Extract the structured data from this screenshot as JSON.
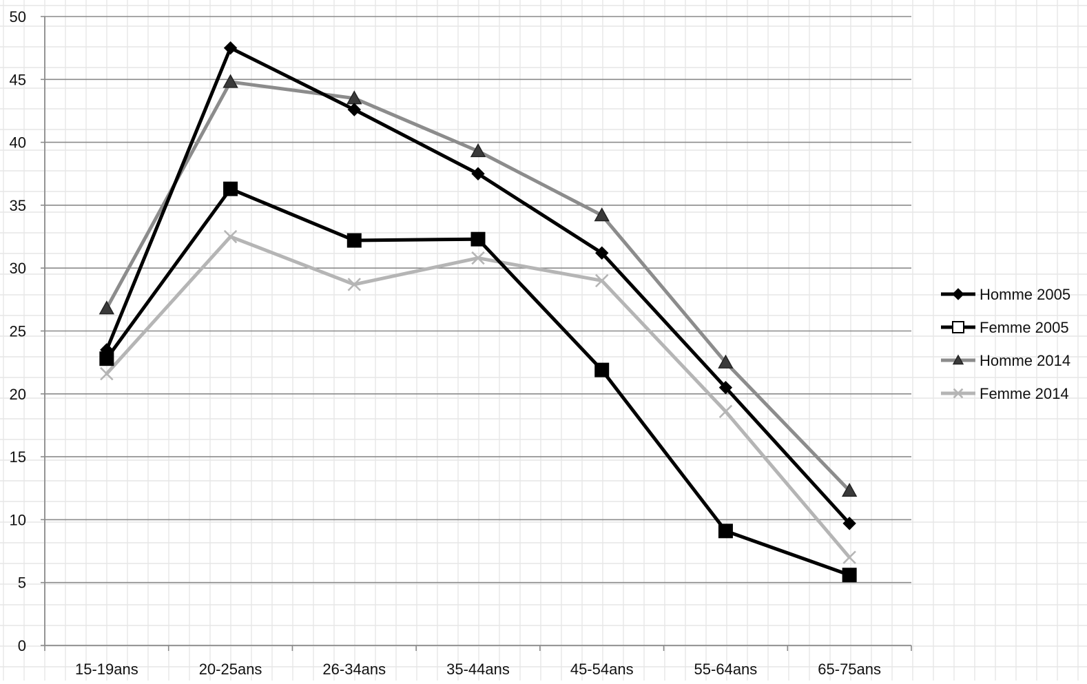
{
  "chart_data": {
    "type": "line",
    "title": "",
    "xlabel": "",
    "ylabel": "",
    "categories": [
      "15-19ans",
      "20-25ans",
      "26-34ans",
      "35-44ans",
      "45-54ans",
      "55-64ans",
      "65-75ans"
    ],
    "ylim": [
      0,
      50
    ],
    "yticks": [
      0,
      5,
      10,
      15,
      20,
      25,
      30,
      35,
      40,
      45,
      50
    ],
    "grid": true,
    "legend_position": "right",
    "series": [
      {
        "name": "Homme 2005",
        "values": [
          23.5,
          47.5,
          42.6,
          37.5,
          31.2,
          20.5,
          9.7
        ],
        "color": "#000000",
        "marker": "diamond"
      },
      {
        "name": "Femme 2005",
        "values": [
          22.8,
          36.3,
          32.2,
          32.3,
          21.9,
          9.1,
          5.6
        ],
        "color": "#000000",
        "marker": "square"
      },
      {
        "name": "Homme 2014",
        "values": [
          26.8,
          44.8,
          43.5,
          39.3,
          34.2,
          22.5,
          12.3
        ],
        "color": "#8c8c8c",
        "marker": "triangle"
      },
      {
        "name": "Femme 2014",
        "values": [
          21.6,
          32.5,
          28.7,
          30.8,
          29.0,
          18.6,
          7.0
        ],
        "color": "#b5b5b5",
        "marker": "x"
      }
    ]
  }
}
